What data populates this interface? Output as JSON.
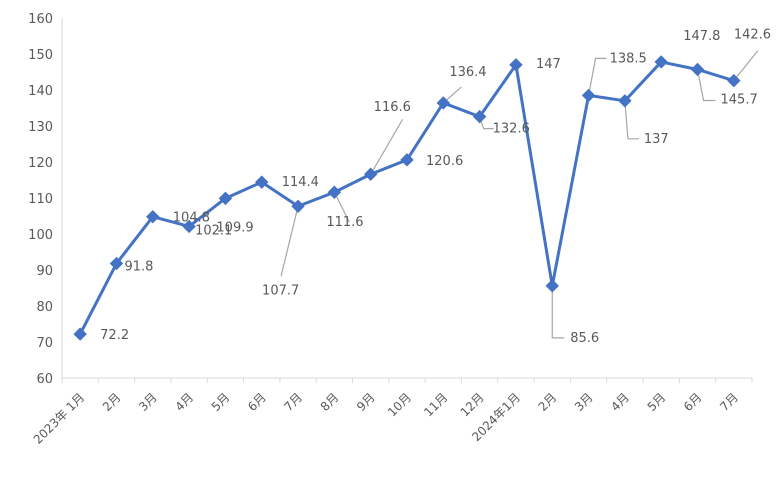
{
  "chart_data": {
    "type": "line",
    "title": "",
    "xlabel": "",
    "ylabel": "",
    "categories": [
      "2023年 1月",
      "2月",
      "3月",
      "4月",
      "5月",
      "6月",
      "7月",
      "8月",
      "9月",
      "10月",
      "11月",
      "12月",
      "2024年1月",
      "2月",
      "3月",
      "4月",
      "5月",
      "6月",
      "7月"
    ],
    "series": [
      {
        "values": [
          72.2,
          91.8,
          104.8,
          102.1,
          109.9,
          114.4,
          107.7,
          111.6,
          116.6,
          120.6,
          136.4,
          132.6,
          147,
          85.6,
          138.5,
          137,
          147.8,
          145.7,
          142.6
        ]
      }
    ],
    "ylim": [
      60,
      160
    ],
    "yticks": [
      60,
      70,
      80,
      90,
      100,
      110,
      120,
      130,
      140,
      150,
      160
    ],
    "grid": false,
    "legend": "none",
    "line_color": "#4472C4",
    "label_color": "#595959",
    "leader_color": "#A6A6A6"
  }
}
